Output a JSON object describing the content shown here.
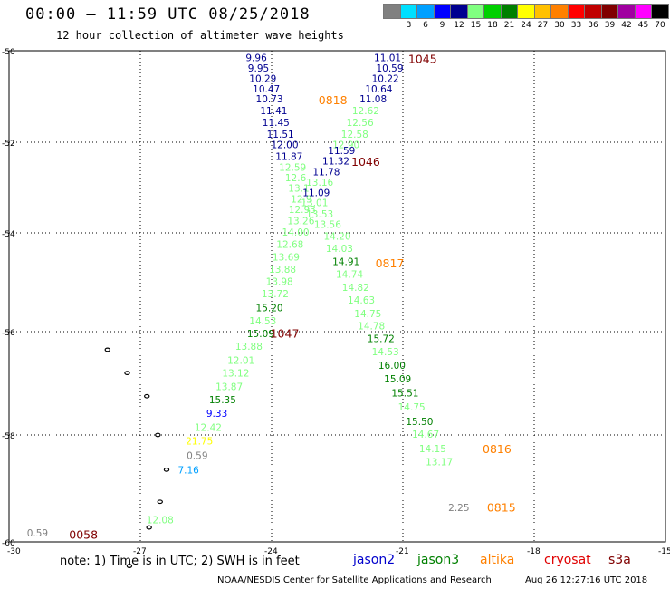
{
  "header": {
    "title": "00:00 – 11:59 UTC 08/25/2018",
    "subtitle": "12 hour collection of altimeter wave heights"
  },
  "legend": {
    "unit": "(ft)",
    "bins": [
      {
        "color": "#808080",
        "label": ""
      },
      {
        "color": "#00e0ff",
        "label": "3"
      },
      {
        "color": "#00a0ff",
        "label": "6"
      },
      {
        "color": "#0000ff",
        "label": "9"
      },
      {
        "color": "#000090",
        "label": "12"
      },
      {
        "color": "#80ff80",
        "label": "15"
      },
      {
        "color": "#00d000",
        "label": "18"
      },
      {
        "color": "#008000",
        "label": "21"
      },
      {
        "color": "#ffff00",
        "label": "24"
      },
      {
        "color": "#ffc000",
        "label": "27"
      },
      {
        "color": "#ff8000",
        "label": "30"
      },
      {
        "color": "#ff0000",
        "label": "33"
      },
      {
        "color": "#c00000",
        "label": "36"
      },
      {
        "color": "#800000",
        "label": "39"
      },
      {
        "color": "#a000a0",
        "label": "42"
      },
      {
        "color": "#ff00ff",
        "label": "45"
      },
      {
        "color": "#000000",
        "label": "70"
      }
    ]
  },
  "map": {
    "lon_ticks": [
      "-30",
      "-27",
      "-24",
      "-21",
      "-18",
      "-15"
    ],
    "lat_ticks": [
      "-50",
      "-52",
      "-54",
      "-56",
      "-58",
      "-60"
    ],
    "track_a": [
      {
        "lon": -24.35,
        "lat": -50.17,
        "v": "9.96",
        "c": "#000090"
      },
      {
        "lon": -24.3,
        "lat": -50.4,
        "v": "9.95",
        "c": "#000090"
      },
      {
        "lon": -24.2,
        "lat": -50.62,
        "v": "10.29",
        "c": "#000090"
      },
      {
        "lon": -24.12,
        "lat": -50.85,
        "v": "10.47",
        "c": "#000090"
      },
      {
        "lon": -24.05,
        "lat": -51.07,
        "v": "10.73",
        "c": "#000090"
      },
      {
        "lon": -23.95,
        "lat": -51.33,
        "v": "11.41",
        "c": "#000090"
      },
      {
        "lon": -23.9,
        "lat": -51.58,
        "v": "11.45",
        "c": "#000090"
      },
      {
        "lon": -23.8,
        "lat": -51.84,
        "v": "11.51",
        "c": "#000090"
      },
      {
        "lon": -23.7,
        "lat": -52.07,
        "v": "12.00",
        "c": "#000090"
      },
      {
        "lon": -23.6,
        "lat": -52.33,
        "v": "11.87",
        "c": "#000090"
      },
      {
        "lon": -23.52,
        "lat": -52.57,
        "v": "12.59",
        "c": "#80ff80"
      },
      {
        "lon": -23.45,
        "lat": -52.8,
        "v": "12.6",
        "c": "#80ff80"
      },
      {
        "lon": -23.38,
        "lat": -53.03,
        "v": "13.1",
        "c": "#80ff80"
      },
      {
        "lon": -23.32,
        "lat": -53.27,
        "v": "12.9",
        "c": "#80ff80"
      },
      {
        "lon": -23.3,
        "lat": -53.5,
        "v": "12.93",
        "c": "#80ff80"
      },
      {
        "lon": -23.33,
        "lat": -53.75,
        "v": "13.26",
        "c": "#80ff80"
      },
      {
        "lon": -23.45,
        "lat": -54.0,
        "v": "14.00",
        "c": "#80ff80"
      },
      {
        "lon": -23.58,
        "lat": -54.25,
        "v": "12.68",
        "c": "#80ff80"
      },
      {
        "lon": -23.67,
        "lat": -54.5,
        "v": "13.69",
        "c": "#80ff80"
      },
      {
        "lon": -23.75,
        "lat": -54.75,
        "v": "13.88",
        "c": "#80ff80"
      },
      {
        "lon": -23.82,
        "lat": -55.0,
        "v": "13.98",
        "c": "#80ff80"
      },
      {
        "lon": -23.92,
        "lat": -55.25,
        "v": "13.72",
        "c": "#80ff80"
      },
      {
        "lon": -24.05,
        "lat": -55.53,
        "v": "15.20",
        "c": "#008000"
      },
      {
        "lon": -24.2,
        "lat": -55.8,
        "v": "14.53",
        "c": "#80ff80"
      },
      {
        "lon": -24.25,
        "lat": -56.05,
        "v": "15.09",
        "c": "#008000"
      },
      {
        "lon": -24.52,
        "lat": -56.3,
        "v": "13.88",
        "c": "#80ff80"
      },
      {
        "lon": -24.7,
        "lat": -56.57,
        "v": "12.01",
        "c": "#80ff80"
      },
      {
        "lon": -24.82,
        "lat": -56.82,
        "v": "13.12",
        "c": "#80ff80"
      },
      {
        "lon": -24.97,
        "lat": -57.08,
        "v": "13.87",
        "c": "#80ff80"
      },
      {
        "lon": -25.12,
        "lat": -57.33,
        "v": "15.35",
        "c": "#008000"
      },
      {
        "lon": -25.25,
        "lat": -57.6,
        "v": "9.33",
        "c": "#0000ff"
      },
      {
        "lon": -25.45,
        "lat": -57.87,
        "v": "12.42",
        "c": "#80ff80"
      },
      {
        "lon": -25.65,
        "lat": -58.13,
        "v": "21.75",
        "c": "#ffff00"
      },
      {
        "lon": -25.7,
        "lat": -58.4,
        "v": "0.59",
        "c": "#808080"
      },
      {
        "lon": -25.9,
        "lat": -58.67,
        "v": "7.16",
        "c": "#00a0ff"
      },
      {
        "lon": -26.55,
        "lat": -59.6,
        "v": "12.08",
        "c": "#80ff80"
      }
    ],
    "track_b": [
      {
        "lon": -21.35,
        "lat": -50.17,
        "v": "11.01",
        "c": "#000090"
      },
      {
        "lon": -21.3,
        "lat": -50.4,
        "v": "10.59",
        "c": "#000090"
      },
      {
        "lon": -21.4,
        "lat": -50.62,
        "v": "10.22",
        "c": "#000090"
      },
      {
        "lon": -21.55,
        "lat": -50.85,
        "v": "10.64",
        "c": "#000090"
      },
      {
        "lon": -21.68,
        "lat": -51.07,
        "v": "11.08",
        "c": "#000090"
      },
      {
        "lon": -21.85,
        "lat": -51.33,
        "v": "12.62",
        "c": "#80ff80"
      },
      {
        "lon": -21.98,
        "lat": -51.58,
        "v": "12.56",
        "c": "#80ff80"
      },
      {
        "lon": -22.1,
        "lat": -51.84,
        "v": "12.58",
        "c": "#80ff80"
      },
      {
        "lon": -22.3,
        "lat": -52.07,
        "v": "12.90",
        "c": "#80ff80"
      },
      {
        "lon": -22.4,
        "lat": -52.2,
        "v": "11.59",
        "c": "#000090"
      },
      {
        "lon": -22.53,
        "lat": -52.43,
        "v": "11.32",
        "c": "#000090"
      },
      {
        "lon": -22.75,
        "lat": -52.67,
        "v": "11.78",
        "c": "#000090"
      },
      {
        "lon": -22.9,
        "lat": -52.9,
        "v": "13.16",
        "c": "#80ff80"
      },
      {
        "lon": -22.98,
        "lat": -53.13,
        "v": "11.09",
        "c": "#000090"
      },
      {
        "lon": -23.02,
        "lat": -53.35,
        "v": "13.01",
        "c": "#80ff80"
      },
      {
        "lon": -22.9,
        "lat": -53.6,
        "v": "13.53",
        "c": "#80ff80"
      },
      {
        "lon": -22.72,
        "lat": -53.83,
        "v": "13.56",
        "c": "#80ff80"
      },
      {
        "lon": -22.5,
        "lat": -54.08,
        "v": "14.20",
        "c": "#80ff80"
      },
      {
        "lon": -22.45,
        "lat": -54.33,
        "v": "14.03",
        "c": "#80ff80"
      },
      {
        "lon": -22.3,
        "lat": -54.6,
        "v": "14.91",
        "c": "#008000"
      },
      {
        "lon": -22.22,
        "lat": -54.85,
        "v": "14.74",
        "c": "#80ff80"
      },
      {
        "lon": -22.08,
        "lat": -55.12,
        "v": "14.82",
        "c": "#80ff80"
      },
      {
        "lon": -21.95,
        "lat": -55.38,
        "v": "14.63",
        "c": "#80ff80"
      },
      {
        "lon": -21.8,
        "lat": -55.65,
        "v": "14.75",
        "c": "#80ff80"
      },
      {
        "lon": -21.72,
        "lat": -55.9,
        "v": "14.78",
        "c": "#80ff80"
      },
      {
        "lon": -21.5,
        "lat": -56.15,
        "v": "15.72",
        "c": "#008000"
      },
      {
        "lon": -21.4,
        "lat": -56.4,
        "v": "14.53",
        "c": "#80ff80"
      },
      {
        "lon": -21.25,
        "lat": -56.67,
        "v": "16.00",
        "c": "#008000"
      },
      {
        "lon": -21.12,
        "lat": -56.93,
        "v": "15.09",
        "c": "#008000"
      },
      {
        "lon": -20.95,
        "lat": -57.2,
        "v": "15.51",
        "c": "#008000"
      },
      {
        "lon": -20.8,
        "lat": -57.47,
        "v": "14.75",
        "c": "#80ff80"
      },
      {
        "lon": -20.62,
        "lat": -57.75,
        "v": "15.50",
        "c": "#008000"
      },
      {
        "lon": -20.48,
        "lat": -58.0,
        "v": "14.67",
        "c": "#80ff80"
      },
      {
        "lon": -20.32,
        "lat": -58.27,
        "v": "14.15",
        "c": "#80ff80"
      },
      {
        "lon": -20.17,
        "lat": -58.52,
        "v": "13.17",
        "c": "#80ff80"
      },
      {
        "lon": -19.72,
        "lat": -59.37,
        "v": "2.25",
        "c": "#808080"
      },
      {
        "lon": -29.35,
        "lat": -59.85,
        "v": "0.59",
        "c": "#808080"
      }
    ],
    "time_labels": [
      {
        "lon": -20.55,
        "lat": -50.2,
        "v": "1045",
        "c": "#800000"
      },
      {
        "lon": -22.6,
        "lat": -51.1,
        "v": "0818",
        "c": "#ff8000"
      },
      {
        "lon": -21.85,
        "lat": -52.45,
        "v": "1046",
        "c": "#800000"
      },
      {
        "lon": -21.3,
        "lat": -54.63,
        "v": "0817",
        "c": "#ff8000"
      },
      {
        "lon": -23.7,
        "lat": -56.05,
        "v": "1047",
        "c": "#800000"
      },
      {
        "lon": -18.85,
        "lat": -58.28,
        "v": "0816",
        "c": "#ff8000"
      },
      {
        "lon": -18.75,
        "lat": -59.37,
        "v": "0815",
        "c": "#ff8000"
      },
      {
        "lon": -28.3,
        "lat": -59.88,
        "v": "0058",
        "c": "#800000"
      }
    ],
    "islands": [
      {
        "lon": -27.75,
        "lat": -56.35
      },
      {
        "lon": -27.3,
        "lat": -56.8
      },
      {
        "lon": -26.85,
        "lat": -57.25
      },
      {
        "lon": -26.6,
        "lat": -58.0
      },
      {
        "lon": -26.4,
        "lat": -58.65
      },
      {
        "lon": -26.55,
        "lat": -59.25
      },
      {
        "lon": -26.8,
        "lat": -59.73
      },
      {
        "lon": -27.25,
        "lat": -60.45
      }
    ]
  },
  "footer": {
    "note": "note: 1) Time is in UTC; 2) SWH is in feet",
    "satellites": [
      {
        "name": "jason2",
        "color": "#0000cc"
      },
      {
        "name": "jason3",
        "color": "#008000"
      },
      {
        "name": "altika",
        "color": "#ff8000"
      },
      {
        "name": "cryosat",
        "color": "#e00000"
      },
      {
        "name": "s3a",
        "color": "#800000"
      }
    ],
    "credit": "NOAA/NESDIS Center for Satellite Applications and Research",
    "timestamp": "Aug 26 12:27:16 UTC 2018"
  }
}
